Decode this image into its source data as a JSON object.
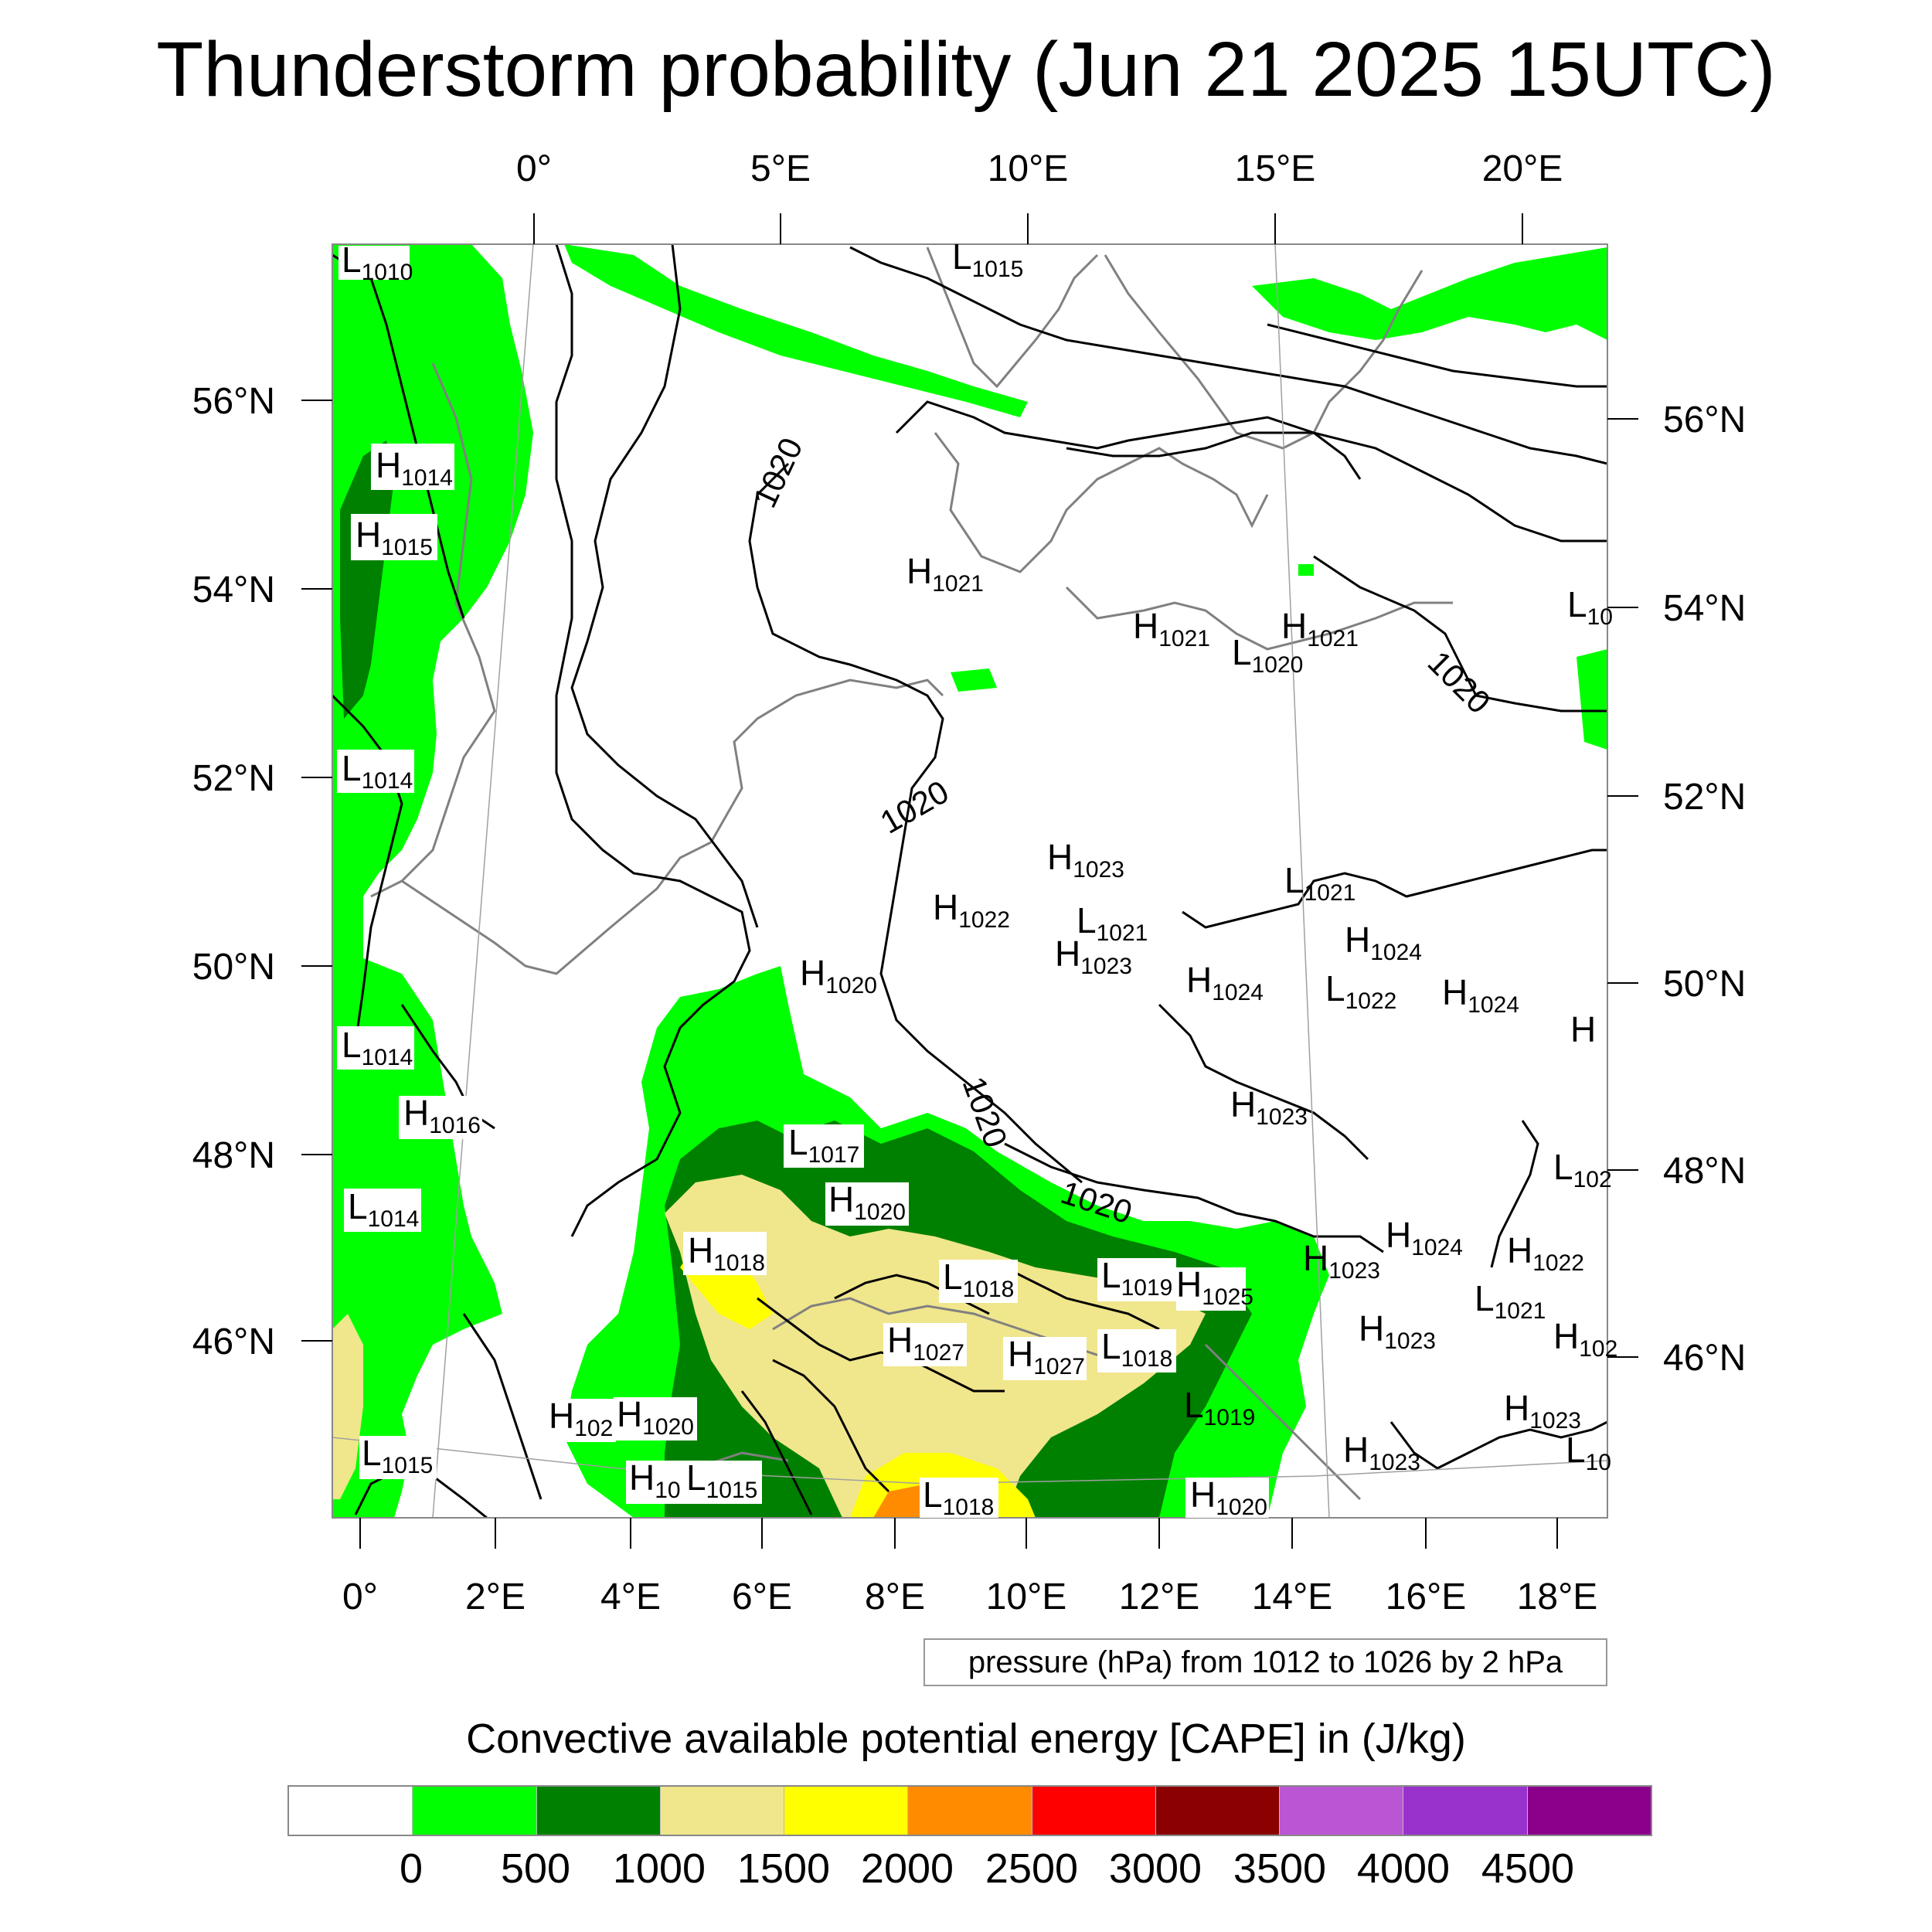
{
  "title": "Thunderstorm probability (Jun 21 2025 15UTC)",
  "top_longitude_labels": [
    "0°",
    "5°E",
    "10°E",
    "15°E",
    "20°E"
  ],
  "bottom_longitude_labels": [
    "0°",
    "2°E",
    "4°E",
    "6°E",
    "8°E",
    "10°E",
    "12°E",
    "14°E",
    "16°E",
    "18°E"
  ],
  "left_latitude_labels": [
    "56°N",
    "54°N",
    "52°N",
    "50°N",
    "48°N",
    "46°N"
  ],
  "right_latitude_labels": [
    "56°N",
    "54°N",
    "52°N",
    "50°N",
    "48°N",
    "46°N"
  ],
  "isobar_labels": [
    "1020",
    "1020",
    "1020",
    "1020",
    "1020"
  ],
  "pressure_centers": [
    {
      "type": "L",
      "value": "1010"
    },
    {
      "type": "L",
      "value": "1015"
    },
    {
      "type": "H",
      "value": "1014"
    },
    {
      "type": "H",
      "value": "1015"
    },
    {
      "type": "H",
      "value": "1021"
    },
    {
      "type": "H",
      "value": "1021"
    },
    {
      "type": "H",
      "value": "1021"
    },
    {
      "type": "L",
      "value": "1020"
    },
    {
      "type": "L",
      "value": "10"
    },
    {
      "type": "L",
      "value": "1014"
    },
    {
      "type": "H",
      "value": "1023"
    },
    {
      "type": "H",
      "value": "1022"
    },
    {
      "type": "L",
      "value": "1021"
    },
    {
      "type": "H",
      "value": "1023"
    },
    {
      "type": "L",
      "value": "1021"
    },
    {
      "type": "H",
      "value": "1024"
    },
    {
      "type": "H",
      "value": "1020"
    },
    {
      "type": "H",
      "value": "1024"
    },
    {
      "type": "L",
      "value": "1022"
    },
    {
      "type": "H",
      "value": "1024"
    },
    {
      "type": "H",
      "value": ""
    },
    {
      "type": "L",
      "value": "1014"
    },
    {
      "type": "H",
      "value": "1016"
    },
    {
      "type": "H",
      "value": "1023"
    },
    {
      "type": "L",
      "value": "1017"
    },
    {
      "type": "L",
      "value": "102"
    },
    {
      "type": "L",
      "value": "1014"
    },
    {
      "type": "H",
      "value": "1020"
    },
    {
      "type": "H",
      "value": "1018"
    },
    {
      "type": "H",
      "value": "1024"
    },
    {
      "type": "H",
      "value": "1022"
    },
    {
      "type": "L",
      "value": "1018"
    },
    {
      "type": "L",
      "value": "1019"
    },
    {
      "type": "H",
      "value": "1025"
    },
    {
      "type": "H",
      "value": "1023"
    },
    {
      "type": "L",
      "value": "1021"
    },
    {
      "type": "H",
      "value": "1027"
    },
    {
      "type": "H",
      "value": "1027"
    },
    {
      "type": "L",
      "value": "1018"
    },
    {
      "type": "H",
      "value": "1023"
    },
    {
      "type": "H",
      "value": "102"
    },
    {
      "type": "H",
      "value": "102"
    },
    {
      "type": "H",
      "value": "1020"
    },
    {
      "type": "L",
      "value": "1019"
    },
    {
      "type": "H",
      "value": "1023"
    },
    {
      "type": "L",
      "value": "1015"
    },
    {
      "type": "H",
      "value": "1023"
    },
    {
      "type": "L",
      "value": "10"
    },
    {
      "type": "H",
      "value": "10"
    },
    {
      "type": "L",
      "value": "1015"
    },
    {
      "type": "L",
      "value": "1018"
    },
    {
      "type": "H",
      "value": "1020"
    }
  ],
  "info_box": "pressure (hPa) from 1012 to 1026 by 2 hPa",
  "legend": {
    "title": "Convective available potential energy [CAPE] in (J/kg)",
    "colors": [
      "#ffffff",
      "#00ff00",
      "#008000",
      "#f0e68c",
      "#ffff00",
      "#ff8c00",
      "#ff0000",
      "#8b0000",
      "#ba55d3",
      "#9932cc",
      "#8b008b"
    ],
    "labels": [
      "0",
      "500",
      "1000",
      "1500",
      "2000",
      "2500",
      "3000",
      "3500",
      "4000",
      "4500"
    ]
  }
}
